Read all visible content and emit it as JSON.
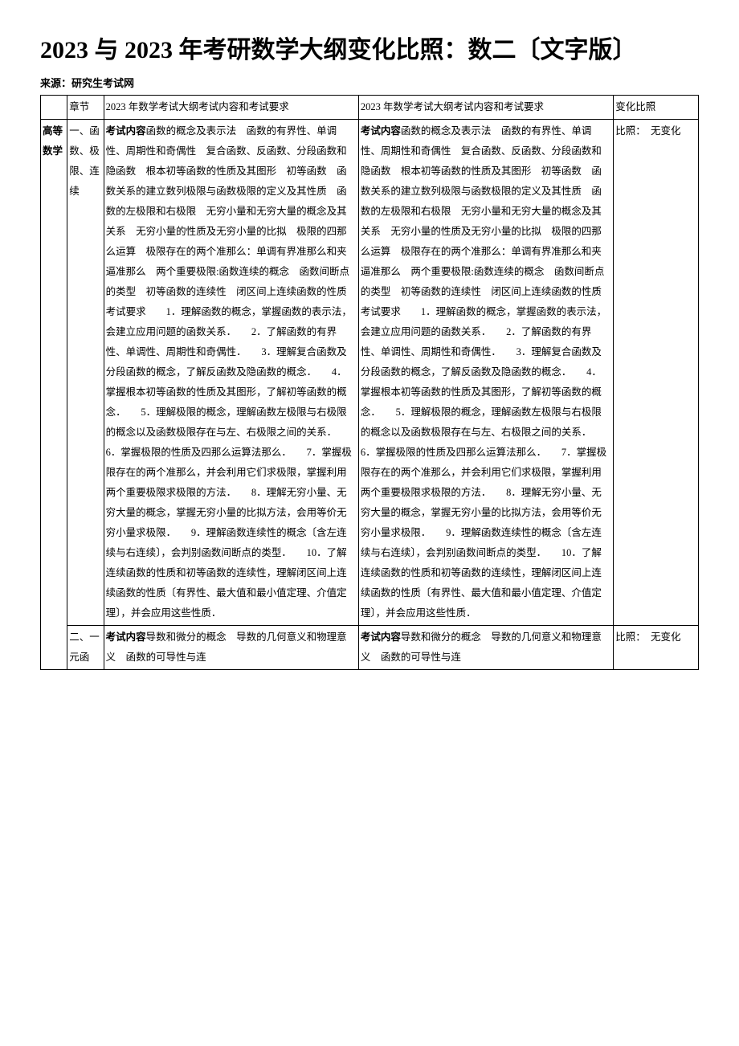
{
  "title": "2023 与 2023 年考研数学大纲变化比照：数二〔文字版〕",
  "source": "来源：研究生考试网",
  "table": {
    "header": {
      "chapter": "",
      "section": "章节",
      "left": "2023 年数学考试大纲考试内容和考试要求",
      "right": "2023 年数学考试大纲考试内容和考试要求",
      "compare": "变化比照"
    },
    "rows": [
      {
        "chapter": "高等数学",
        "section": "一、函数、极限、连续",
        "left_bold": "考试内容",
        "left": "函数的概念及表示法　函数的有界性、单调性、周期性和奇偶性　复合函数、反函数、分段函数和隐函数　根本初等函数的性质及其图形　初等函数　函数关系的建立数列极限与函数极限的定义及其性质　函数的左极限和右极限　无穷小量和无穷大量的概念及其关系　无穷小量的性质及无穷小量的比拟　极限的四那么运算　极限存在的两个准那么：单调有界准那么和夹逼准那么　两个重要极限:函数连续的概念　函数间断点的类型　初等函数的连续性　闭区间上连续函数的性质考试要求　　1．理解函数的概念，掌握函数的表示法，会建立应用问题的函数关系．　　2．了解函数的有界性、单调性、周期性和奇偶性．　　3．理解复合函数及分段函数的概念，了解反函数及隐函数的概念．　　4．掌握根本初等函数的性质及其图形，了解初等函数的概念．　　5．理解极限的概念，理解函数左极限与右极限的概念以及函数极限存在与左、右极限之间的关系．　　6．掌握极限的性质及四那么运算法那么．　　7．掌握极限存在的两个准那么，并会利用它们求极限，掌握利用两个重要极限求极限的方法．　　8．理解无穷小量、无穷大量的概念，掌握无穷小量的比拟方法，会用等价无穷小量求极限．　　9．理解函数连续性的概念〔含左连续与右连续〕，会判别函数间断点的类型．　　10．了解连续函数的性质和初等函数的连续性，理解闭区间上连续函数的性质〔有界性、最大值和最小值定理、介值定理〕，并会应用这些性质．",
        "right_bold": "考试内容",
        "right": "函数的概念及表示法　函数的有界性、单调性、周期性和奇偶性　复合函数、反函数、分段函数和隐函数　根本初等函数的性质及其图形　初等函数　函数关系的建立数列极限与函数极限的定义及其性质　函数的左极限和右极限　无穷小量和无穷大量的概念及其关系　无穷小量的性质及无穷小量的比拟　极限的四那么运算　极限存在的两个准那么：单调有界准那么和夹逼准那么　两个重要极限:函数连续的概念　函数间断点的类型　初等函数的连续性　闭区间上连续函数的性质考试要求　　1．理解函数的概念，掌握函数的表示法，会建立应用问题的函数关系．　　2．了解函数的有界性、单调性、周期性和奇偶性．　　3．理解复合函数及分段函数的概念，了解反函数及隐函数的概念．　　4．掌握根本初等函数的性质及其图形，了解初等函数的概念．　　5．理解极限的概念，理解函数左极限与右极限的概念以及函数极限存在与左、右极限之间的关系．　　6．掌握极限的性质及四那么运算法那么．　　7．掌握极限存在的两个准那么，并会利用它们求极限，掌握利用两个重要极限求极限的方法．　　8．理解无穷小量、无穷大量的概念，掌握无穷小量的比拟方法，会用等价无穷小量求极限．　　9．理解函数连续性的概念〔含左连续与右连续〕，会判别函数间断点的类型．　　10．了解连续函数的性质和初等函数的连续性，理解闭区间上连续函数的性质〔有界性、最大值和最小值定理、介值定理〕，并会应用这些性质．",
        "compare": "比照：　无变化"
      },
      {
        "chapter": "",
        "section": "二、一元函",
        "left_bold": "考试内容",
        "left": "导数和微分的概念　导数的几何意义和物理意义　函数的可导性与连",
        "right_bold": "考试内容",
        "right": "导数和微分的概念　导数的几何意义和物理意义　函数的可导性与连",
        "compare": "比照：　无变化"
      }
    ]
  },
  "style": {
    "title_fontsize": 30,
    "body_fontsize": 12.5,
    "line_height": 2.0,
    "border_color": "#000000",
    "background": "#ffffff",
    "text_color": "#000000"
  }
}
